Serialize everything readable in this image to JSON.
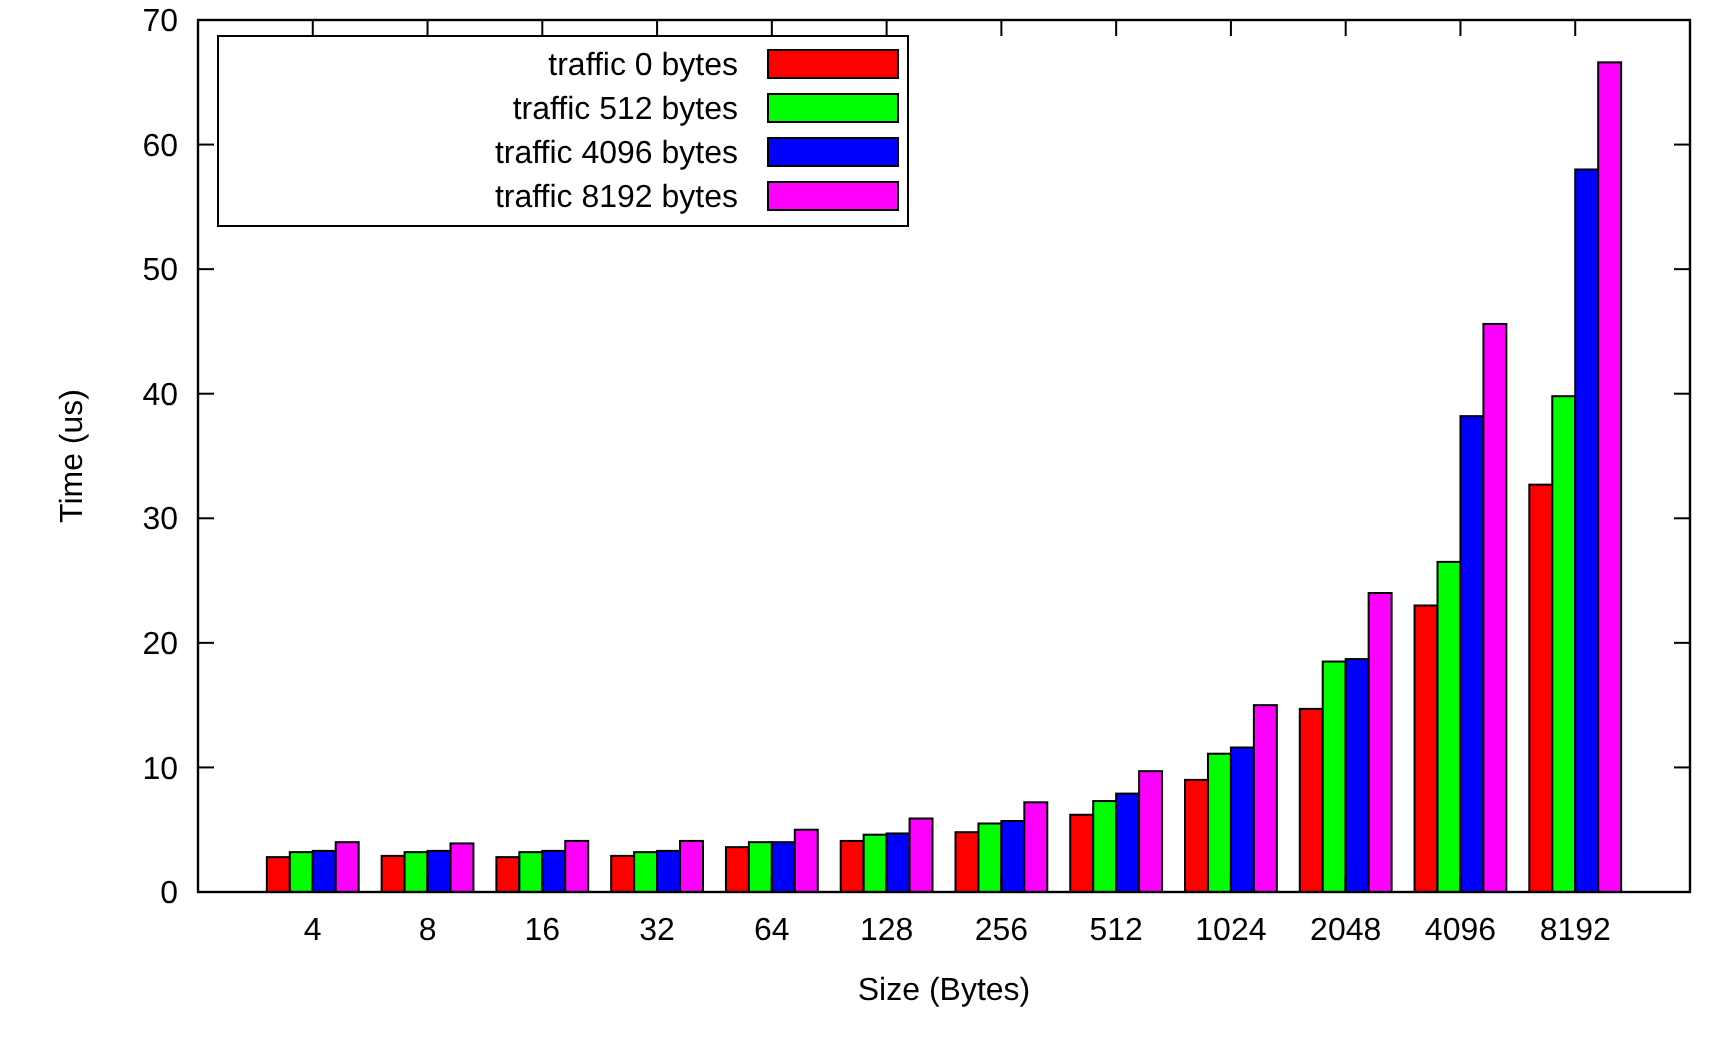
{
  "chart_data": {
    "type": "bar",
    "xlabel": "Size (Bytes)",
    "ylabel": "Time (us)",
    "categories": [
      "4",
      "8",
      "16",
      "32",
      "64",
      "128",
      "256",
      "512",
      "1024",
      "2048",
      "4096",
      "8192"
    ],
    "series": [
      {
        "name": "traffic 0 bytes",
        "color": "#ff0000",
        "values": [
          2.8,
          2.9,
          2.8,
          2.9,
          3.6,
          4.1,
          4.8,
          6.2,
          9.0,
          14.7,
          23.0,
          32.7
        ]
      },
      {
        "name": "traffic 512 bytes",
        "color": "#00ff00",
        "values": [
          3.2,
          3.2,
          3.2,
          3.2,
          4.0,
          4.6,
          5.5,
          7.3,
          11.1,
          18.5,
          26.5,
          39.8
        ]
      },
      {
        "name": "traffic 4096 bytes",
        "color": "#0000ff",
        "values": [
          3.3,
          3.3,
          3.3,
          3.3,
          4.0,
          4.7,
          5.7,
          7.9,
          11.6,
          18.7,
          38.2,
          58.0
        ]
      },
      {
        "name": "traffic 8192 bytes",
        "color": "#ff00ff",
        "values": [
          4.0,
          3.9,
          4.1,
          4.1,
          5.0,
          5.9,
          7.2,
          9.7,
          15.0,
          24.0,
          45.6,
          66.6
        ]
      }
    ],
    "ylim": [
      0,
      70
    ],
    "yticks": [
      0,
      10,
      20,
      30,
      40,
      50,
      60,
      70
    ],
    "grid": false,
    "legend": "top left"
  }
}
